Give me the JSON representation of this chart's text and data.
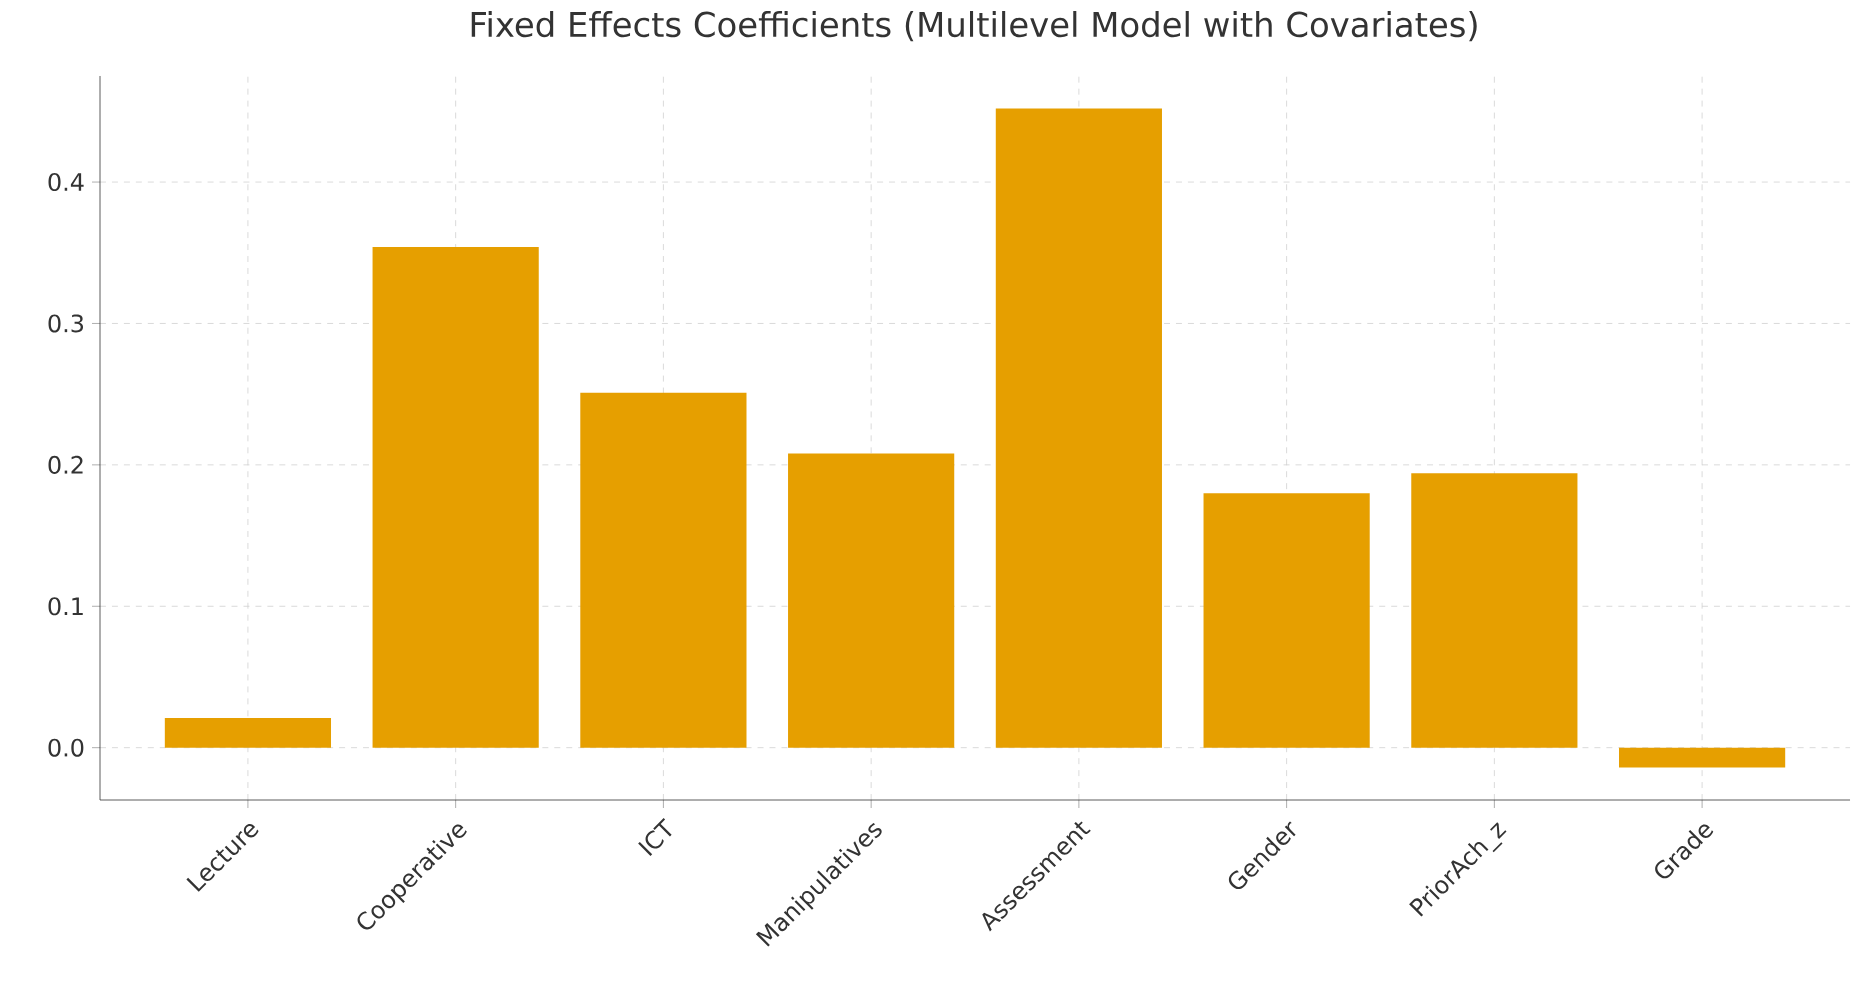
{
  "chart_data": {
    "type": "bar",
    "title": "Fixed Effects Coefficients (Multilevel Model with Covariates)",
    "categories": [
      "Lecture",
      "Cooperative",
      "ICT",
      "Manipulatives",
      "Assessment",
      "Gender",
      "PriorAch_z",
      "Grade"
    ],
    "values": [
      0.021,
      0.354,
      0.251,
      0.208,
      0.452,
      0.18,
      0.194,
      -0.014
    ],
    "color": "#e69f00",
    "ylim": [
      -0.037,
      0.475
    ],
    "yticks": [
      {
        "value": 0,
        "label": "0.0"
      },
      0.1,
      0.2,
      0.3,
      0.4
    ],
    "grid": true
  }
}
